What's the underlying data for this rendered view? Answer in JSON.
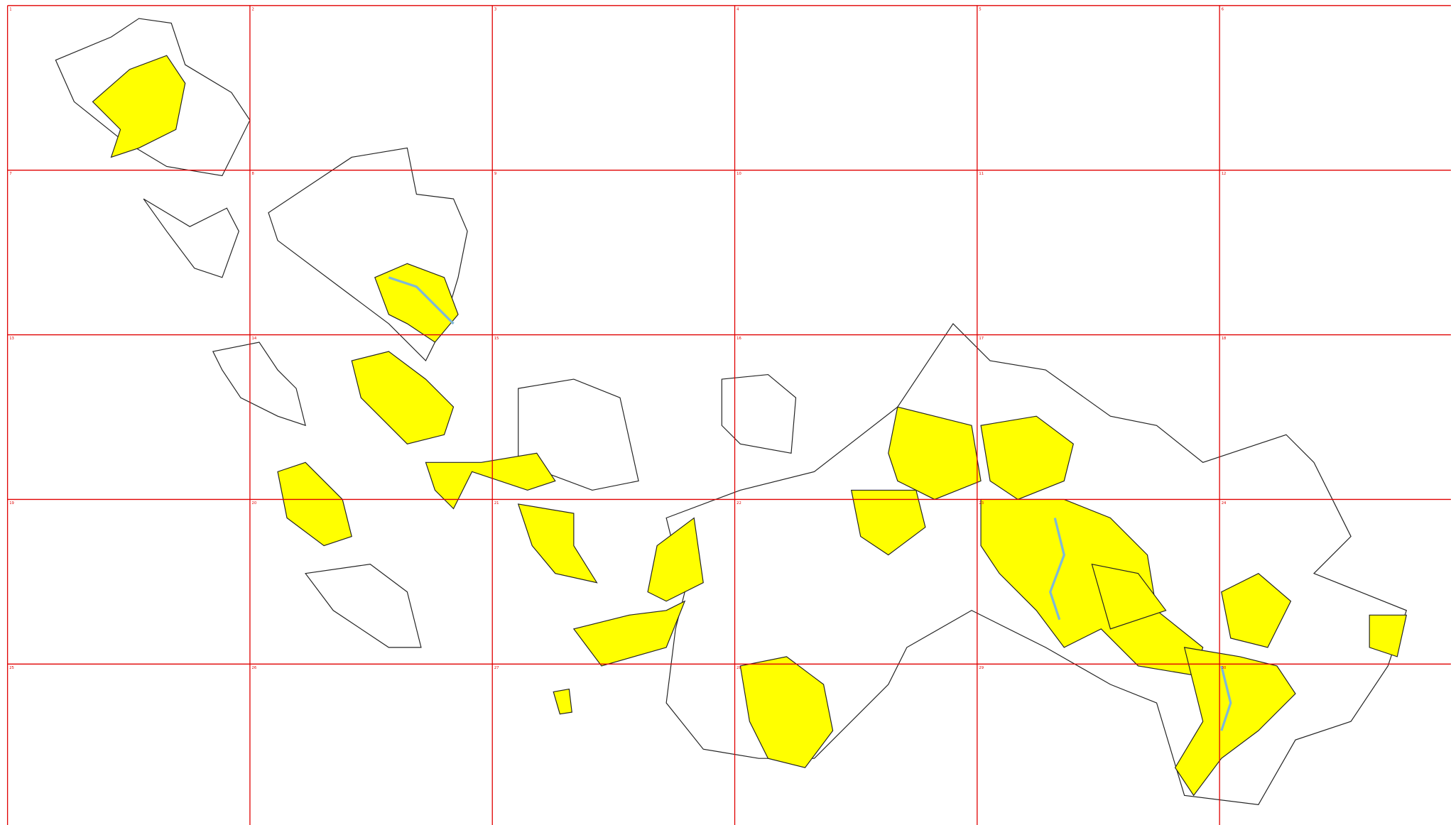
{
  "grid": {
    "cells": [
      "1",
      "2",
      "3",
      "4",
      "5",
      "6",
      "7",
      "8",
      "9",
      "10",
      "11",
      "12",
      "13",
      "14",
      "15",
      "16",
      "17",
      "18",
      "19",
      "20",
      "21",
      "22",
      "23",
      "24",
      "25",
      "26",
      "27",
      "28",
      "29",
      "30"
    ]
  }
}
